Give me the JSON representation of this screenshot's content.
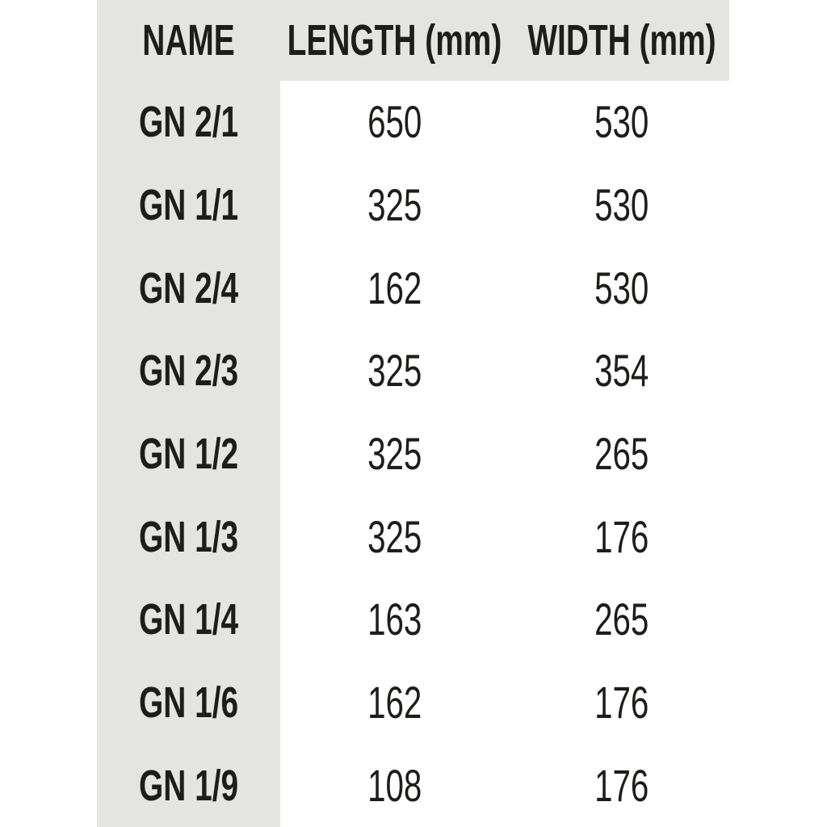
{
  "chart_data": {
    "type": "table",
    "columns": [
      "NAME",
      "LENGTH (mm)",
      "WIDTH (mm)"
    ],
    "rows": [
      [
        "GN 2/1",
        "650",
        "530"
      ],
      [
        "GN 1/1",
        "325",
        "530"
      ],
      [
        "GN 2/4",
        "162",
        "530"
      ],
      [
        "GN 2/3",
        "325",
        "354"
      ],
      [
        "GN 1/2",
        "325",
        "265"
      ],
      [
        "GN 1/3",
        "325",
        "176"
      ],
      [
        "GN 1/4",
        "163",
        "265"
      ],
      [
        "GN 1/6",
        "162",
        "176"
      ],
      [
        "GN 1/9",
        "108",
        "176"
      ]
    ]
  },
  "colors": {
    "band": "#e4e4e2",
    "text": "#1d1d1b",
    "background": "#ffffff"
  }
}
